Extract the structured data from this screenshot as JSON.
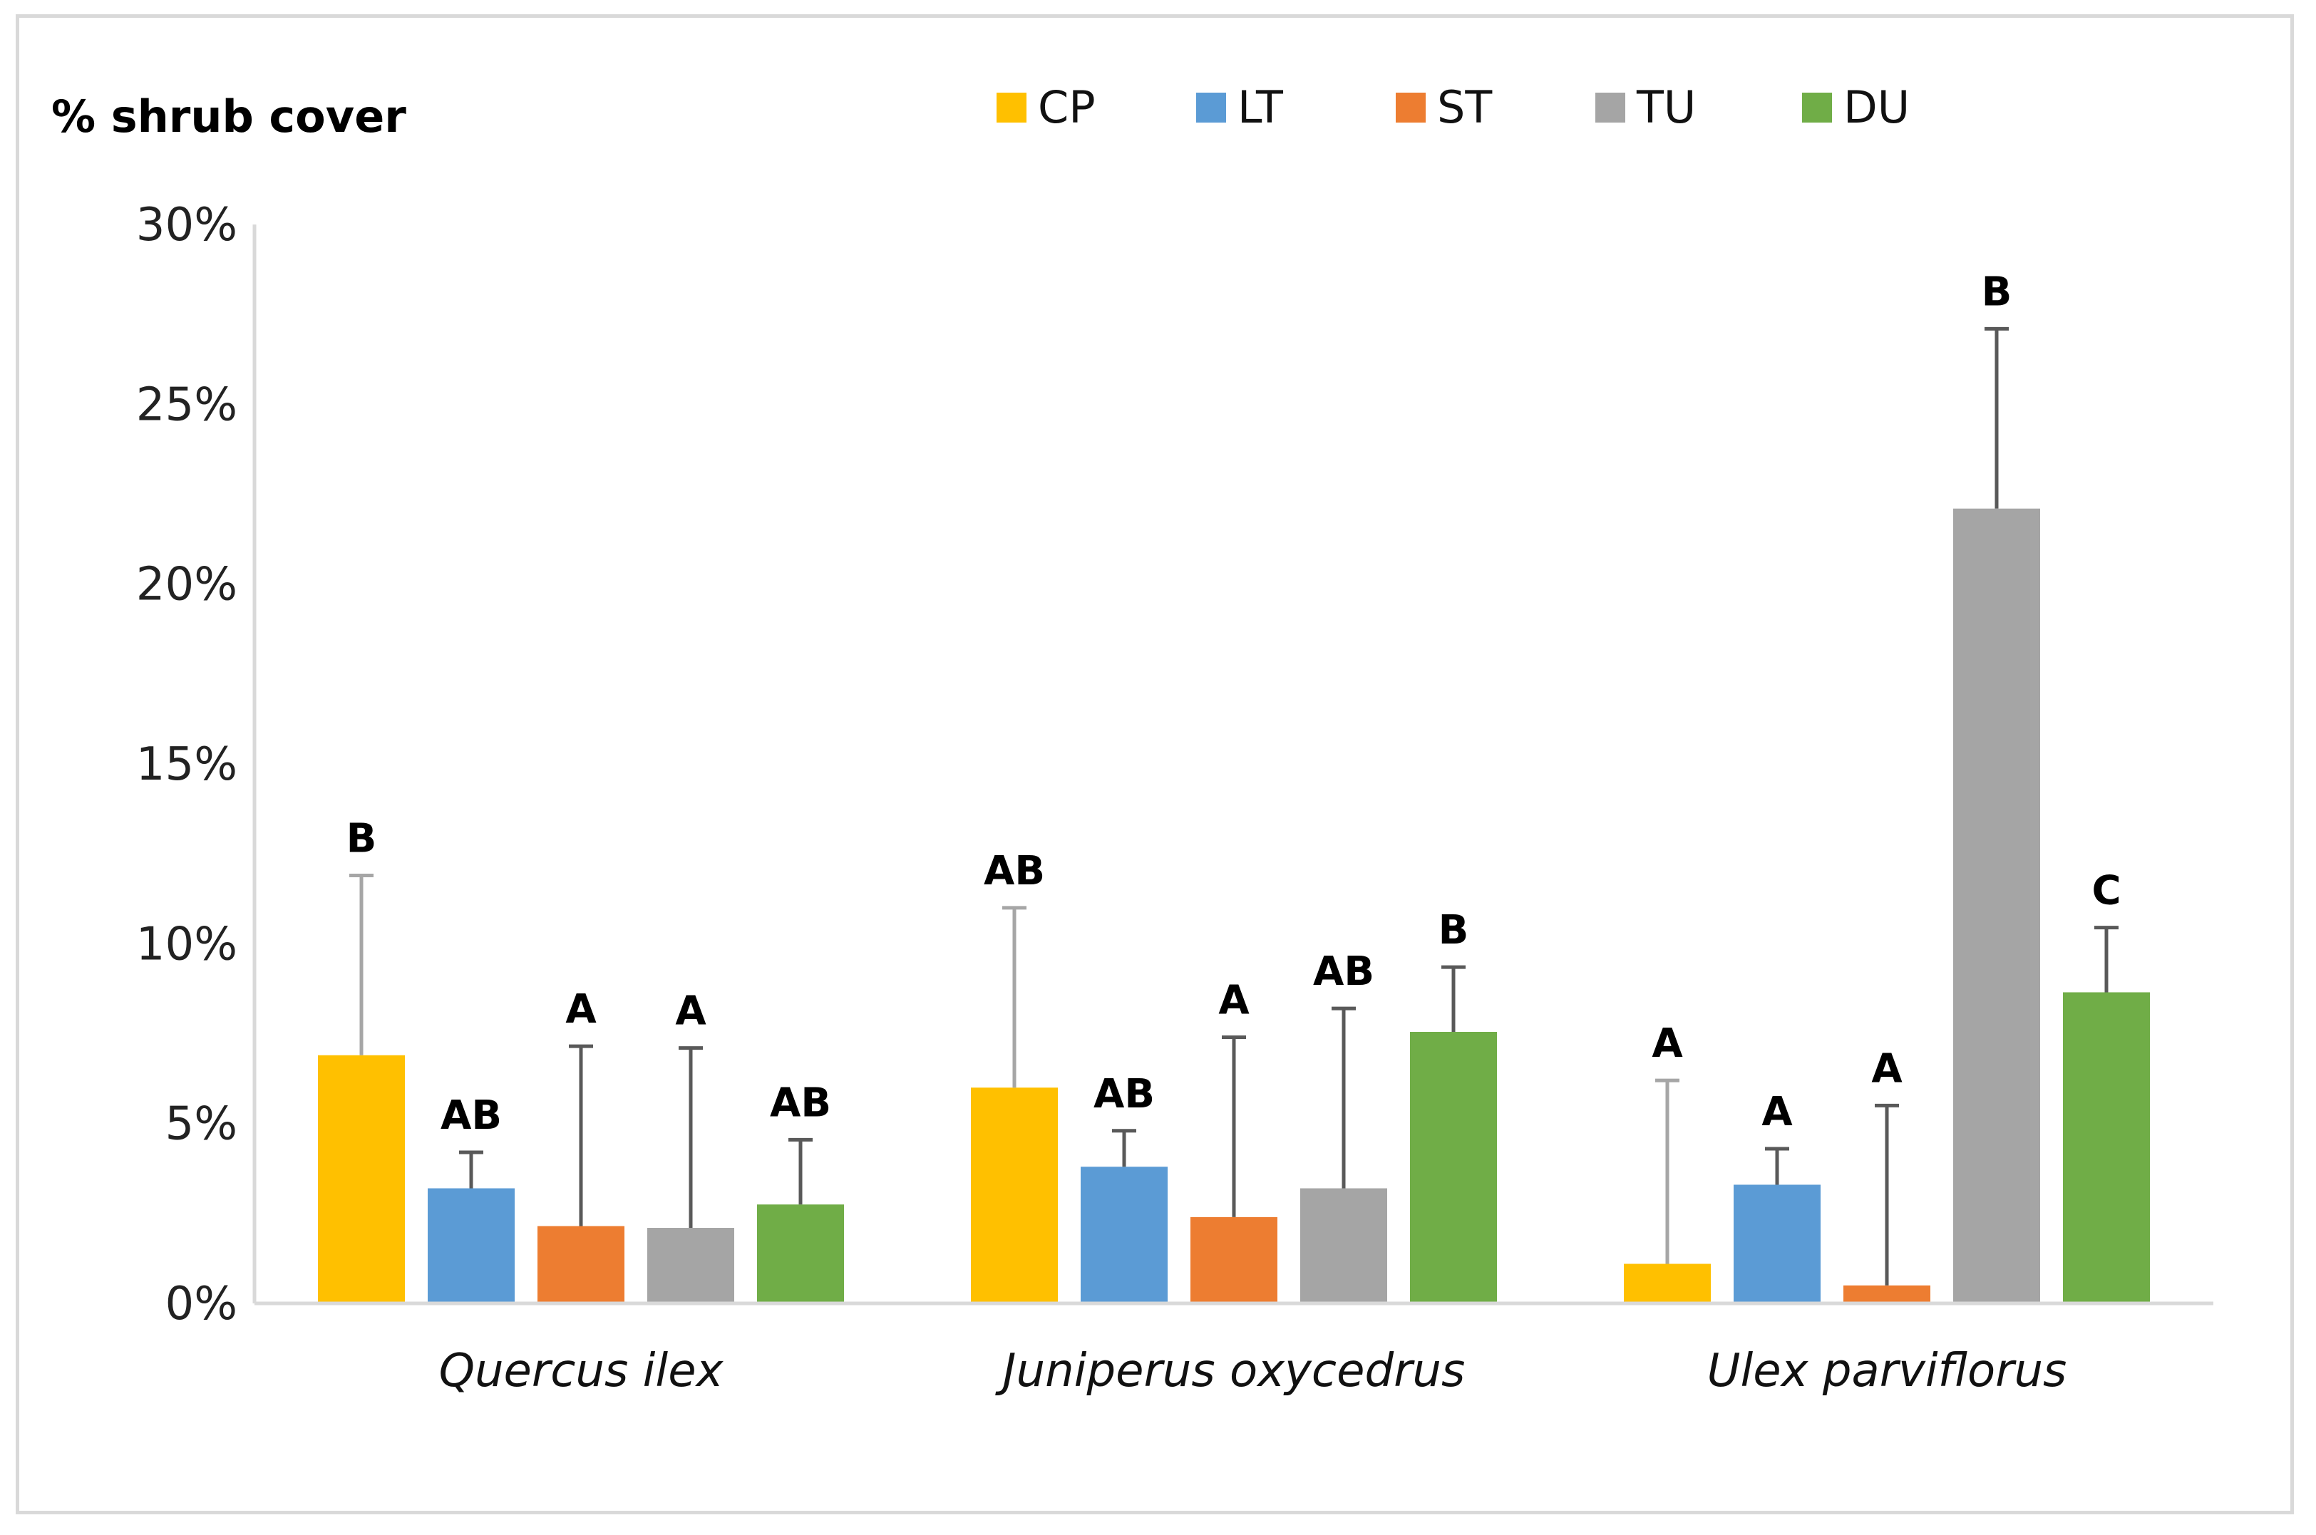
{
  "chart_data": {
    "type": "bar",
    "ylabel": "% shrub cover",
    "ylim": [
      0,
      30
    ],
    "yticks": [
      "0%",
      "5%",
      "10%",
      "15%",
      "20%",
      "25%",
      "30%"
    ],
    "categories": [
      "Quercus ilex",
      "Juniperus oxycedrus",
      "Ulex parviflorus"
    ],
    "legend_position": "top",
    "series": [
      {
        "name": "CP",
        "color": "#ffc000",
        "errcolor": "#a6a6a6",
        "values": [
          6.9,
          6.0,
          1.1
        ],
        "errors": [
          5.0,
          5.0,
          5.1
        ],
        "labels": [
          "B",
          "AB",
          "A"
        ]
      },
      {
        "name": "LT",
        "color": "#5b9bd5",
        "errcolor": "#595959",
        "values": [
          3.2,
          3.8,
          3.3
        ],
        "errors": [
          1.0,
          1.0,
          1.0
        ],
        "labels": [
          "AB",
          "AB",
          "A"
        ]
      },
      {
        "name": "ST",
        "color": "#ed7d31",
        "errcolor": "#595959",
        "values": [
          2.15,
          2.4,
          0.5
        ],
        "errors": [
          5.0,
          5.0,
          5.0
        ],
        "labels": [
          "A",
          "A",
          "A"
        ]
      },
      {
        "name": "TU",
        "color": "#a5a5a5",
        "errcolor": "#595959",
        "values": [
          2.1,
          3.2,
          22.1
        ],
        "errors": [
          5.0,
          5.0,
          5.0
        ],
        "labels": [
          "A",
          "AB",
          "B"
        ]
      },
      {
        "name": "DU",
        "color": "#70ad47",
        "errcolor": "#595959",
        "values": [
          2.75,
          7.55,
          8.65
        ],
        "errors": [
          1.8,
          1.8,
          1.8
        ],
        "labels": [
          "AB",
          "B",
          "C"
        ]
      }
    ]
  }
}
